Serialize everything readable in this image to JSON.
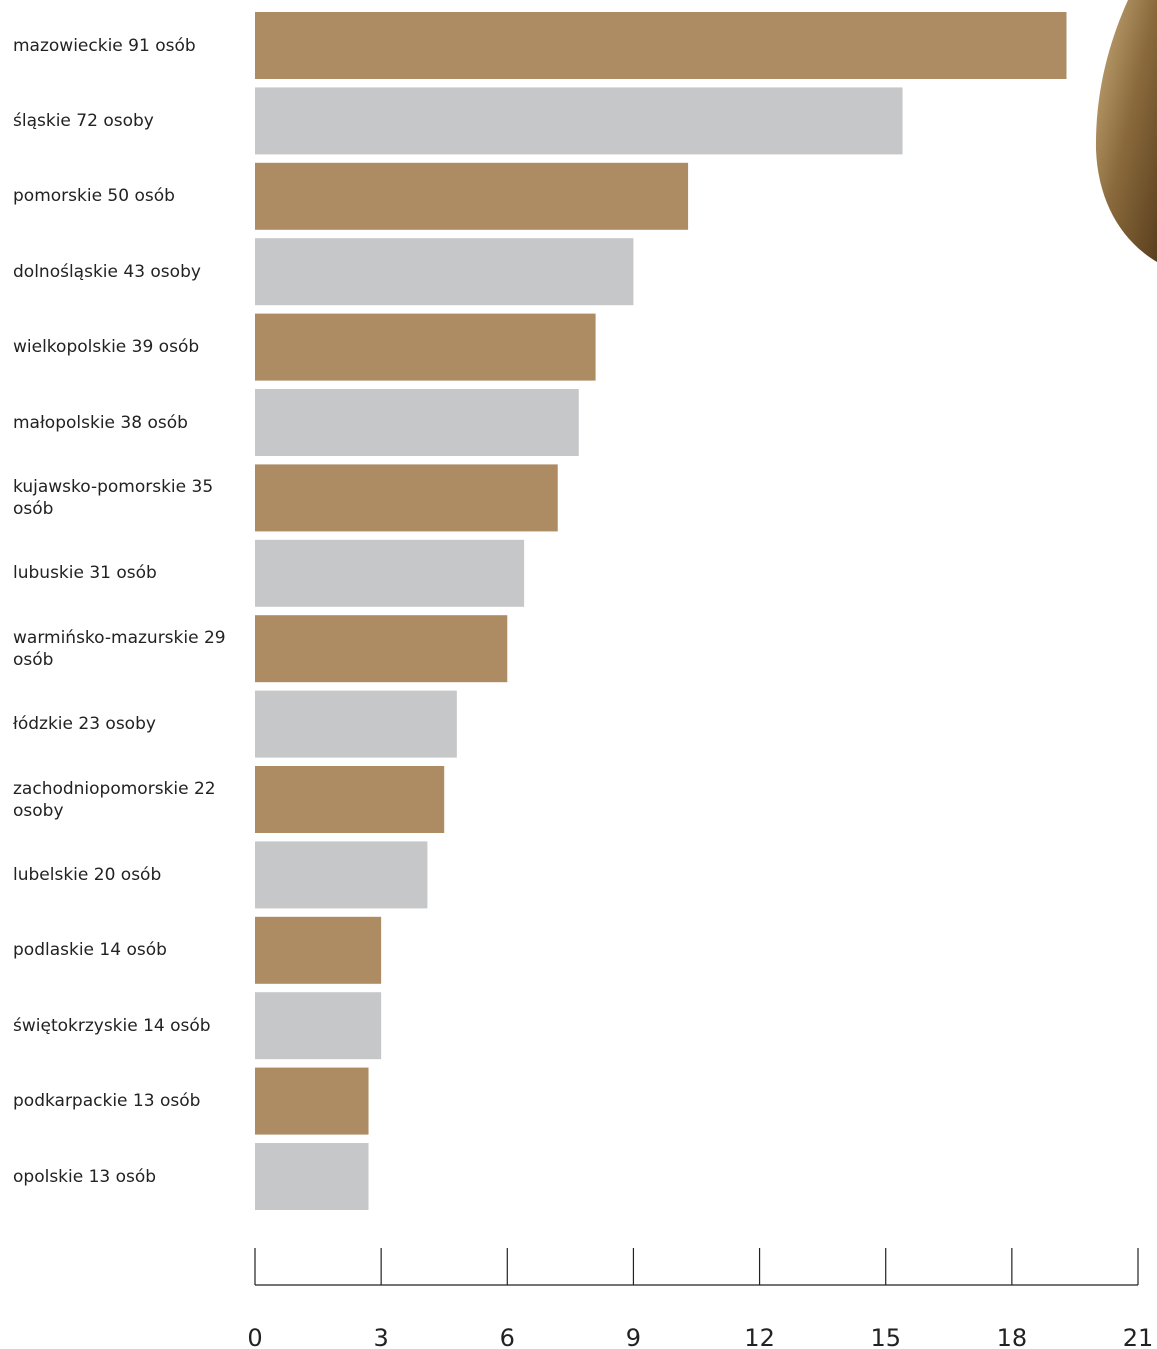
{
  "chart_data": {
    "type": "barh",
    "categories": [
      "mazowieckie 91 osób",
      "śląskie 72 osoby",
      "pomorskie 50 osób",
      "dolnośląskie 43 osoby",
      "wielkopolskie 39 osób",
      "małopolskie 38 osób",
      "kujawsko-pomorskie 35 osób",
      "lubuskie 31 osób",
      "warmińsko-mazurskie 29 osób",
      "łódzkie 23 osoby",
      "zachodniopomorskie 22 osoby",
      "lubelskie 20 osób",
      "podlaskie 14 osób",
      "świętokrzyskie 14 osób",
      "podkarpackie 13 osób",
      "opolskie 13 osób"
    ],
    "values": [
      19.3,
      15.4,
      10.3,
      9.0,
      8.1,
      7.7,
      7.2,
      6.4,
      6.0,
      4.8,
      4.5,
      4.1,
      3.0,
      3.0,
      2.7,
      2.7
    ],
    "colors": [
      "#ae8c63",
      "#c6c7c9"
    ],
    "xlim": [
      0,
      21
    ],
    "xticks": [
      0,
      3,
      6,
      9,
      12,
      15,
      18,
      21
    ]
  }
}
